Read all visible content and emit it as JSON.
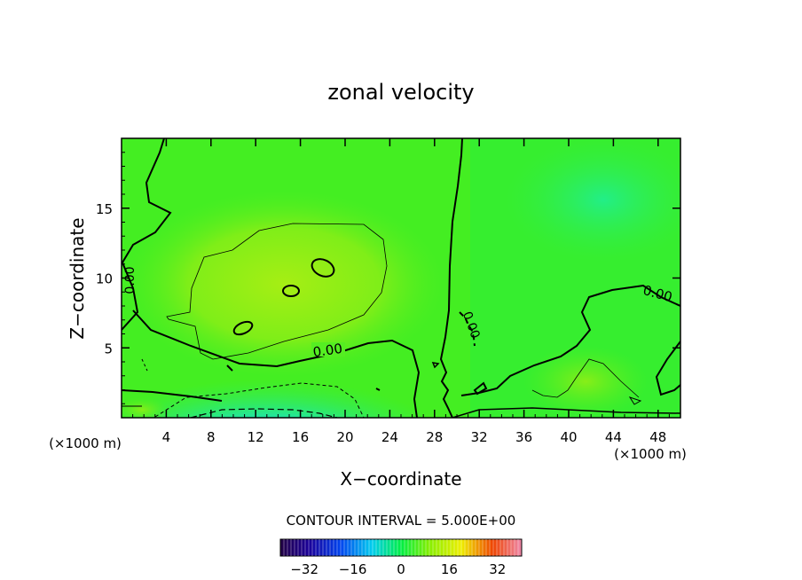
{
  "chart_data": {
    "type": "heatmap",
    "title": "zonal velocity",
    "xlabel": "X−coordinate",
    "ylabel": "Z−coordinate",
    "x_unit": "(×1000 m)",
    "x_unit_right": "(×1000 m)",
    "xlim": [
      0,
      50
    ],
    "ylim": [
      0,
      20
    ],
    "x_ticks": [
      4,
      8,
      12,
      16,
      20,
      24,
      28,
      32,
      36,
      40,
      44,
      48
    ],
    "y_ticks": [
      5,
      10,
      15
    ],
    "contour_interval_text": "CONTOUR INTERVAL = 5.000E+00",
    "contour_labels": [
      "0.00",
      "0.00",
      "0.00",
      "0.00"
    ],
    "colorbar": {
      "range": [
        -40,
        40
      ],
      "ticks": [
        -32,
        -16,
        0,
        16,
        32
      ],
      "tick_labels": [
        "−32",
        "−16",
        "0",
        "16",
        "32"
      ]
    },
    "colors": {
      "background_field": "#33ee22",
      "positive_core": "#99ee10",
      "negative_core": "#22ddcc",
      "contour": "#000000"
    }
  }
}
